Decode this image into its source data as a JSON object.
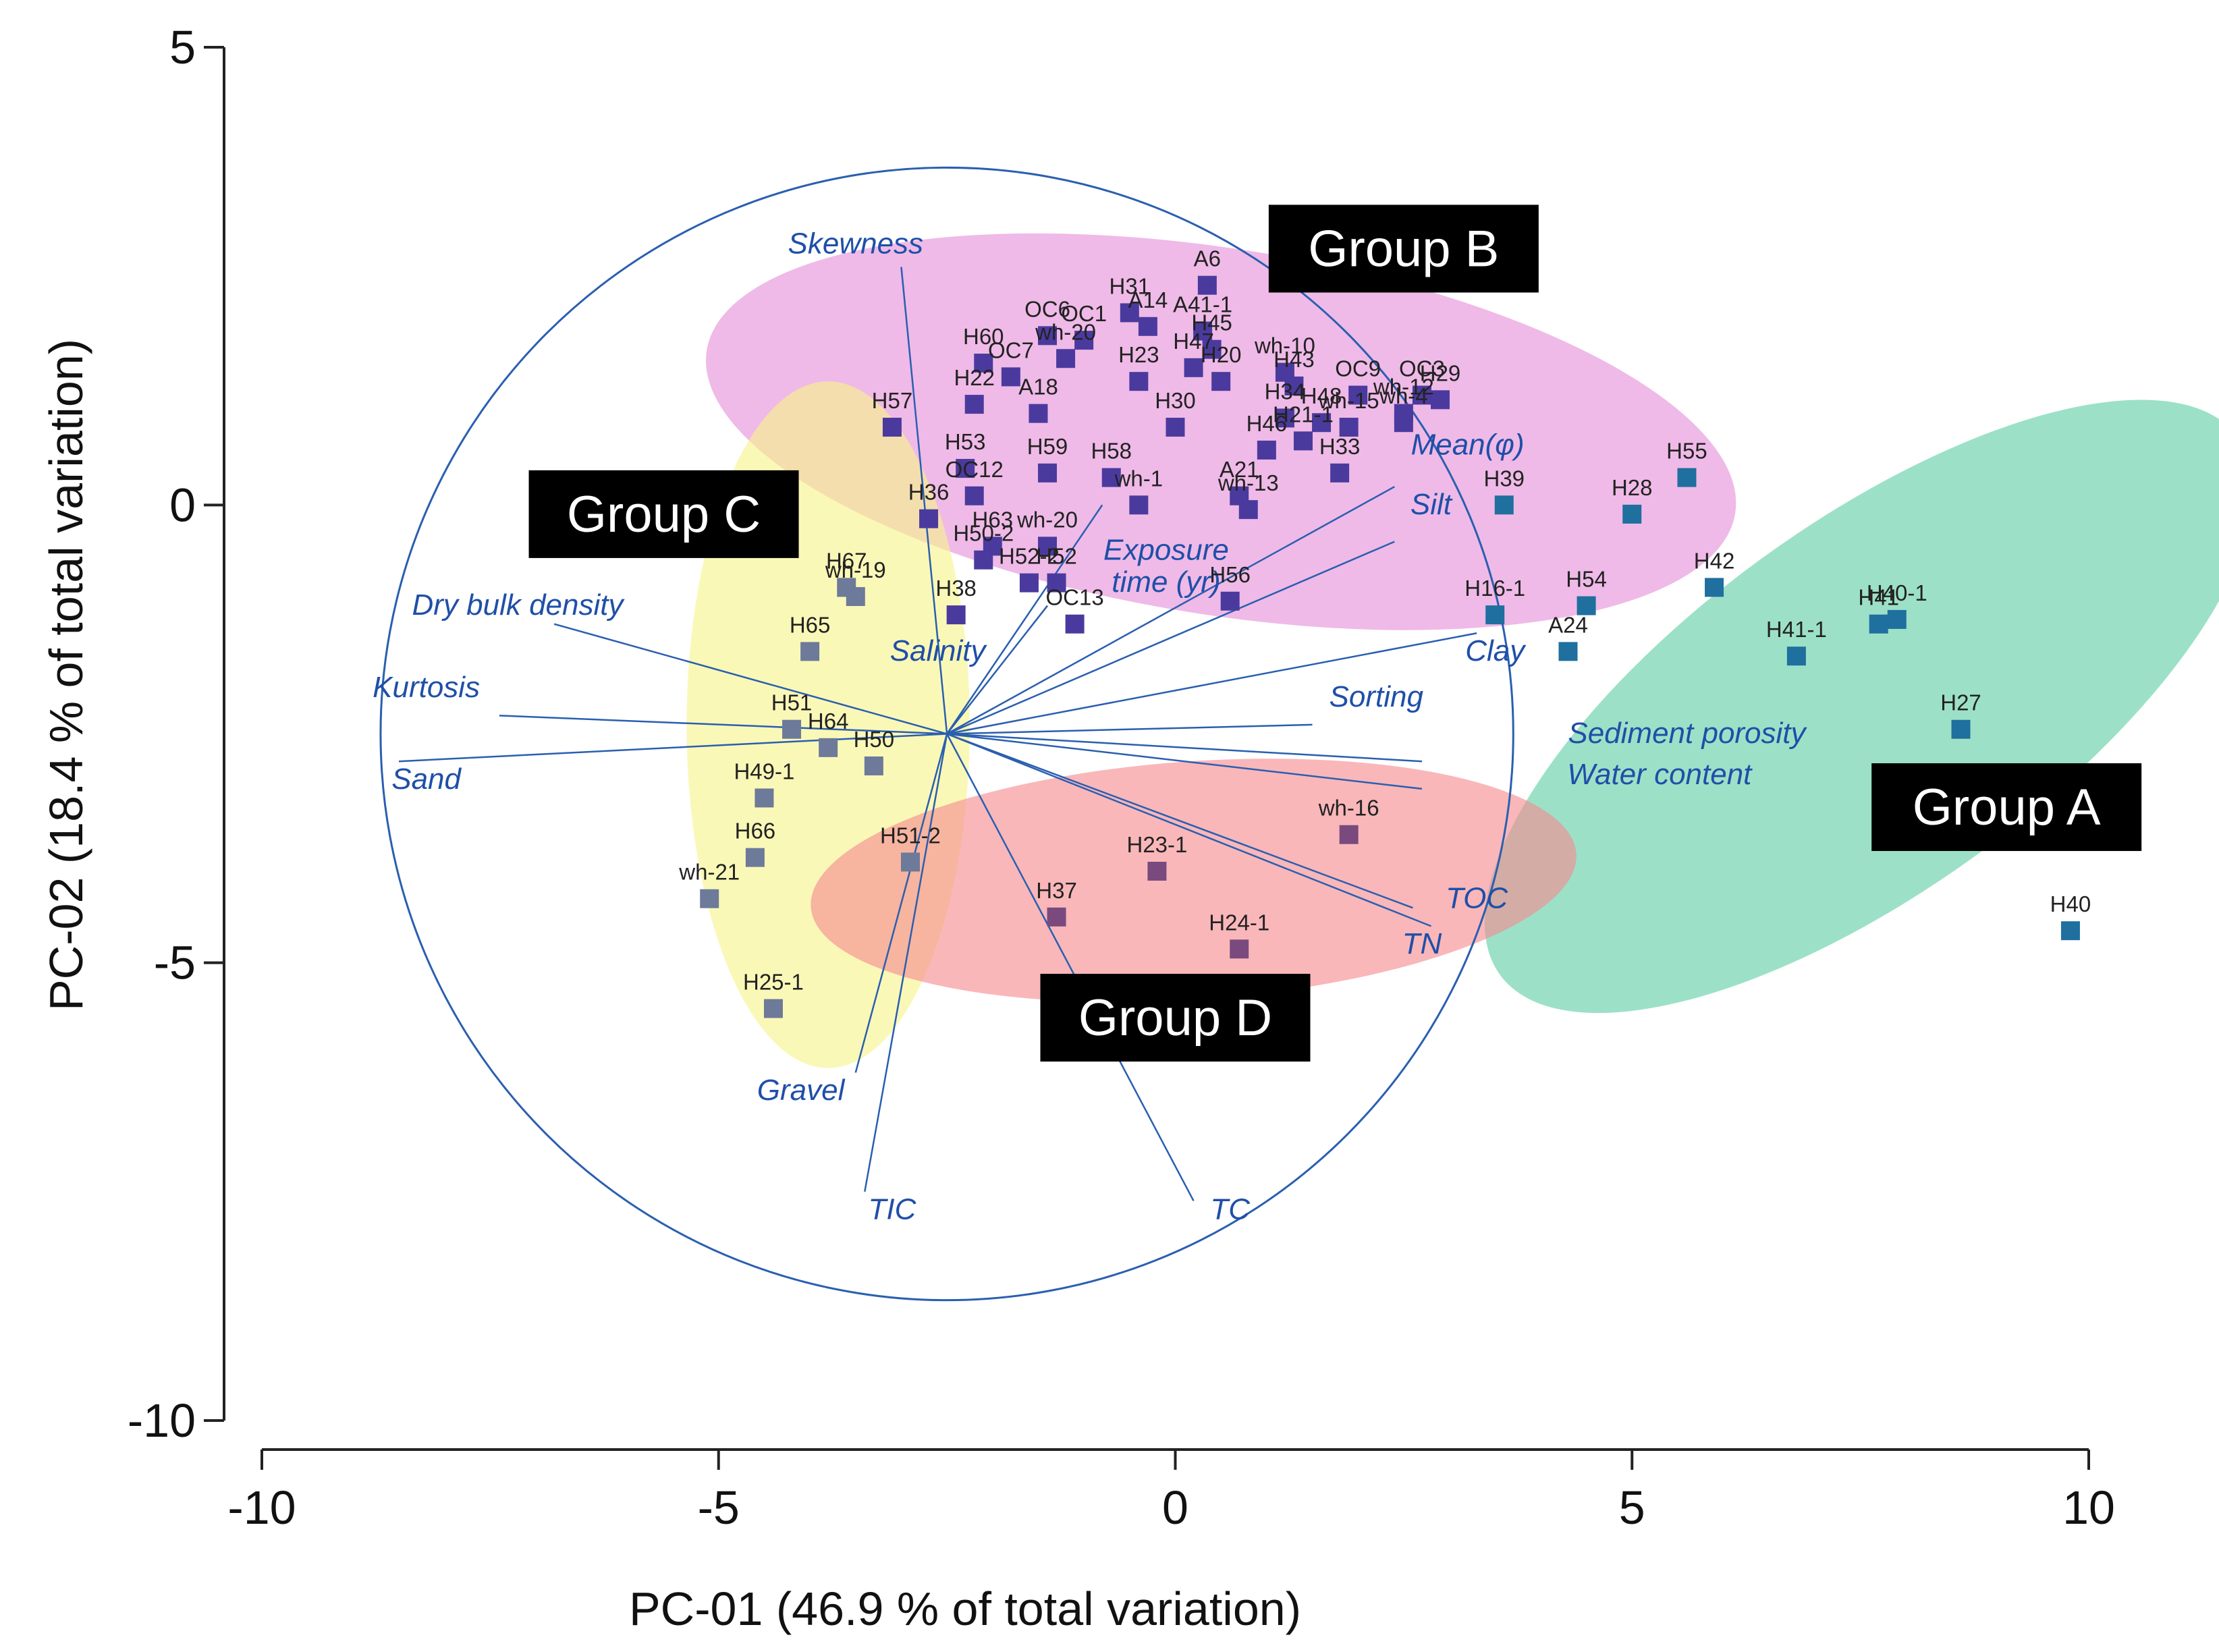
{
  "chart_data": {
    "type": "scatter",
    "subtype": "pca-biplot",
    "xlabel": "PC-01 (46.9 % of total variation)",
    "ylabel": "PC-02 (18.4 % of total variation)",
    "xlim": [
      -10,
      10
    ],
    "ylim": [
      -10,
      5
    ],
    "x_ticks": [
      -10,
      -5,
      0,
      5,
      10
    ],
    "y_ticks": [
      -10,
      -5,
      0,
      5
    ],
    "grid": false,
    "legend": "none",
    "correlation_circle": {
      "center": [
        -2.5,
        -2.5
      ],
      "radius": 6.2,
      "color": "#2a5fb0"
    },
    "groups": [
      {
        "name": "Group A",
        "color": "#5fcfa5",
        "label_at": [
          9.1,
          -3.3
        ],
        "ellipse": {
          "cx": 7.6,
          "cy": -2.2,
          "rx": 5.0,
          "ry": 2.0,
          "angle": -36
        }
      },
      {
        "name": "Group B",
        "color": "#e58fd8",
        "label_at": [
          2.5,
          2.8
        ],
        "ellipse": {
          "cx": 0.5,
          "cy": 0.8,
          "rx": 5.7,
          "ry": 2.0,
          "angle": 9
        }
      },
      {
        "name": "Group C",
        "color": "#f7f48a",
        "label_at": [
          -5.6,
          -0.1
        ],
        "ellipse": {
          "cx": -3.8,
          "cy": -2.4,
          "rx": 1.55,
          "ry": 3.75,
          "angle": 0
        }
      },
      {
        "name": "Group D",
        "color": "#f58b8f",
        "label_at": [
          0.0,
          -5.6
        ],
        "ellipse": {
          "cx": 0.2,
          "cy": -4.1,
          "rx": 4.2,
          "ry": 1.3,
          "angle": -4
        }
      }
    ],
    "vectors": [
      {
        "name": "Skewness",
        "end": [
          -3.0,
          2.6
        ],
        "label_at": [
          -3.5,
          2.75
        ]
      },
      {
        "name": "Dry bulk density",
        "end": [
          -6.8,
          -1.3
        ],
        "label_at": [
          -7.2,
          -1.2
        ]
      },
      {
        "name": "Kurtosis",
        "end": [
          -7.4,
          -2.3
        ],
        "label_at": [
          -8.2,
          -2.1
        ]
      },
      {
        "name": "Sand",
        "end": [
          -8.5,
          -2.8
        ],
        "label_at": [
          -8.2,
          -3.1
        ]
      },
      {
        "name": "Gravel",
        "end": [
          -3.5,
          -6.2
        ],
        "label_at": [
          -4.1,
          -6.5
        ]
      },
      {
        "name": "TIC",
        "end": [
          -3.4,
          -7.5
        ],
        "label_at": [
          -3.1,
          -7.8
        ]
      },
      {
        "name": "TC",
        "end": [
          0.2,
          -7.6
        ],
        "label_at": [
          0.6,
          -7.8
        ]
      },
      {
        "name": "TN",
        "end": [
          2.8,
          -4.6
        ],
        "label_at": [
          2.7,
          -4.9
        ]
      },
      {
        "name": "TOC",
        "end": [
          2.6,
          -4.4
        ],
        "label_at": [
          3.3,
          -4.4
        ]
      },
      {
        "name": "Water content",
        "end": [
          2.7,
          -3.1
        ],
        "label_at": [
          5.3,
          -3.05
        ]
      },
      {
        "name": "Sediment porosity",
        "end": [
          2.7,
          -2.8
        ],
        "label_at": [
          5.6,
          -2.6
        ]
      },
      {
        "name": "Sorting",
        "end": [
          1.5,
          -2.4
        ],
        "label_at": [
          2.2,
          -2.2
        ]
      },
      {
        "name": "Clay",
        "end": [
          3.3,
          -1.4
        ],
        "label_at": [
          3.5,
          -1.7
        ]
      },
      {
        "name": "Silt",
        "end": [
          2.4,
          -0.4
        ],
        "label_at": [
          2.8,
          -0.1
        ]
      },
      {
        "name": "Mean(φ)",
        "end": [
          2.4,
          0.2
        ],
        "label_at": [
          3.2,
          0.55
        ]
      },
      {
        "name": "Exposure time (yr)",
        "end": [
          -0.8,
          0.0
        ],
        "label_at": [
          -0.1,
          -0.6
        ],
        "label_line2_at": [
          -0.1,
          -0.95
        ],
        "line1": "Exposure",
        "line2": "time (yr)"
      },
      {
        "name": "Salinity",
        "end": [
          -1.4,
          -1.1
        ],
        "label_at": [
          -2.6,
          -1.7
        ]
      }
    ],
    "series": [
      {
        "name": "Group A",
        "color": "#1f6f9f",
        "points": [
          {
            "label": "H55",
            "x": 5.6,
            "y": 0.3
          },
          {
            "label": "H28",
            "x": 5.0,
            "y": -0.1
          },
          {
            "label": "H39",
            "x": 3.6,
            "y": 0.0
          },
          {
            "label": "H42",
            "x": 5.9,
            "y": -0.9
          },
          {
            "label": "H54",
            "x": 4.5,
            "y": -1.1
          },
          {
            "label": "H16-1",
            "x": 3.5,
            "y": -1.2
          },
          {
            "label": "A24",
            "x": 4.3,
            "y": -1.6
          },
          {
            "label": "H40-1",
            "x": 7.9,
            "y": -1.25
          },
          {
            "label": "H41-1",
            "x": 6.8,
            "y": -1.65
          },
          {
            "label": "H41",
            "x": 7.7,
            "y": -1.3
          },
          {
            "label": "H27",
            "x": 8.6,
            "y": -2.45
          },
          {
            "label": "H40",
            "x": 9.8,
            "y": -4.65
          }
        ]
      },
      {
        "name": "Group B",
        "color": "#4b3a9e",
        "points": [
          {
            "label": "A6",
            "x": 0.35,
            "y": 2.4
          },
          {
            "label": "H31",
            "x": -0.5,
            "y": 2.1
          },
          {
            "label": "A14",
            "x": -0.3,
            "y": 1.95
          },
          {
            "label": "OC6",
            "x": -1.4,
            "y": 1.85
          },
          {
            "label": "OC1",
            "x": -1.0,
            "y": 1.8
          },
          {
            "label": "A41-1",
            "x": 0.3,
            "y": 1.9
          },
          {
            "label": "H45",
            "x": 0.4,
            "y": 1.7
          },
          {
            "label": "wh-10",
            "x": 1.2,
            "y": 1.45
          },
          {
            "label": "H47",
            "x": 0.2,
            "y": 1.5
          },
          {
            "label": "H60",
            "x": -2.1,
            "y": 1.55
          },
          {
            "label": "wh-20",
            "x": -1.2,
            "y": 1.6
          },
          {
            "label": "OC7",
            "x": -1.8,
            "y": 1.4
          },
          {
            "label": "H23",
            "x": -0.4,
            "y": 1.35
          },
          {
            "label": "H20",
            "x": 0.5,
            "y": 1.35
          },
          {
            "label": "H43",
            "x": 1.3,
            "y": 1.3
          },
          {
            "label": "OC9",
            "x": 2.0,
            "y": 1.2
          },
          {
            "label": "OC3",
            "x": 2.7,
            "y": 1.2
          },
          {
            "label": "H29",
            "x": 2.9,
            "y": 1.15
          },
          {
            "label": "wh-12",
            "x": 2.5,
            "y": 1.0
          },
          {
            "label": "H57",
            "x": -3.1,
            "y": 0.85
          },
          {
            "label": "H22",
            "x": -2.2,
            "y": 1.1
          },
          {
            "label": "A18",
            "x": -1.5,
            "y": 1.0
          },
          {
            "label": "H34",
            "x": 1.2,
            "y": 0.95
          },
          {
            "label": "H48",
            "x": 1.6,
            "y": 0.9
          },
          {
            "label": "H21-1",
            "x": 1.4,
            "y": 0.7
          },
          {
            "label": "H30",
            "x": 0.0,
            "y": 0.85
          },
          {
            "label": "wh-4",
            "x": 2.5,
            "y": 0.9
          },
          {
            "label": "wh-15",
            "x": 1.9,
            "y": 0.85
          },
          {
            "label": "H46",
            "x": 1.0,
            "y": 0.6
          },
          {
            "label": "H53",
            "x": -2.3,
            "y": 0.4
          },
          {
            "label": "H59",
            "x": -1.4,
            "y": 0.35
          },
          {
            "label": "H58",
            "x": -0.7,
            "y": 0.3
          },
          {
            "label": "H33",
            "x": 1.8,
            "y": 0.35
          },
          {
            "label": "OC12",
            "x": -2.2,
            "y": 0.1
          },
          {
            "label": "wh-1",
            "x": -0.4,
            "y": 0.0
          },
          {
            "label": "A21",
            "x": 0.7,
            "y": 0.1
          },
          {
            "label": "wh-13",
            "x": 0.8,
            "y": -0.05
          },
          {
            "label": "H36",
            "x": -2.7,
            "y": -0.15
          },
          {
            "label": "H63",
            "x": -2.0,
            "y": -0.45
          },
          {
            "label": "wh-20",
            "x": -1.4,
            "y": -0.45
          },
          {
            "label": "H50-2",
            "x": -2.1,
            "y": -0.6
          },
          {
            "label": "H52-2",
            "x": -1.6,
            "y": -0.85
          },
          {
            "label": "H52",
            "x": -1.3,
            "y": -0.85
          },
          {
            "label": "H38",
            "x": -2.4,
            "y": -1.2
          },
          {
            "label": "OC13",
            "x": -1.1,
            "y": -1.3
          },
          {
            "label": "H56",
            "x": 0.6,
            "y": -1.05
          }
        ]
      },
      {
        "name": "Group C",
        "color": "#6d7a99",
        "points": [
          {
            "label": "H67",
            "x": -3.6,
            "y": -0.9
          },
          {
            "label": "wh-19",
            "x": -3.5,
            "y": -1.0
          },
          {
            "label": "H65",
            "x": -4.0,
            "y": -1.6
          },
          {
            "label": "H51",
            "x": -4.2,
            "y": -2.45
          },
          {
            "label": "H64",
            "x": -3.8,
            "y": -2.65
          },
          {
            "label": "H50",
            "x": -3.3,
            "y": -2.85
          },
          {
            "label": "H49-1",
            "x": -4.5,
            "y": -3.2
          },
          {
            "label": "H66",
            "x": -4.6,
            "y": -3.85
          },
          {
            "label": "wh-21",
            "x": -5.1,
            "y": -4.3
          },
          {
            "label": "H51-2",
            "x": -2.9,
            "y": -3.9
          },
          {
            "label": "H25-1",
            "x": -4.4,
            "y": -5.5
          }
        ]
      },
      {
        "name": "Group D",
        "color": "#7a4a7e",
        "points": [
          {
            "label": "wh-16",
            "x": 1.9,
            "y": -3.6
          },
          {
            "label": "H23-1",
            "x": -0.2,
            "y": -4.0
          },
          {
            "label": "H37",
            "x": -1.3,
            "y": -4.5
          },
          {
            "label": "H24-1",
            "x": 0.7,
            "y": -4.85
          }
        ]
      }
    ]
  }
}
